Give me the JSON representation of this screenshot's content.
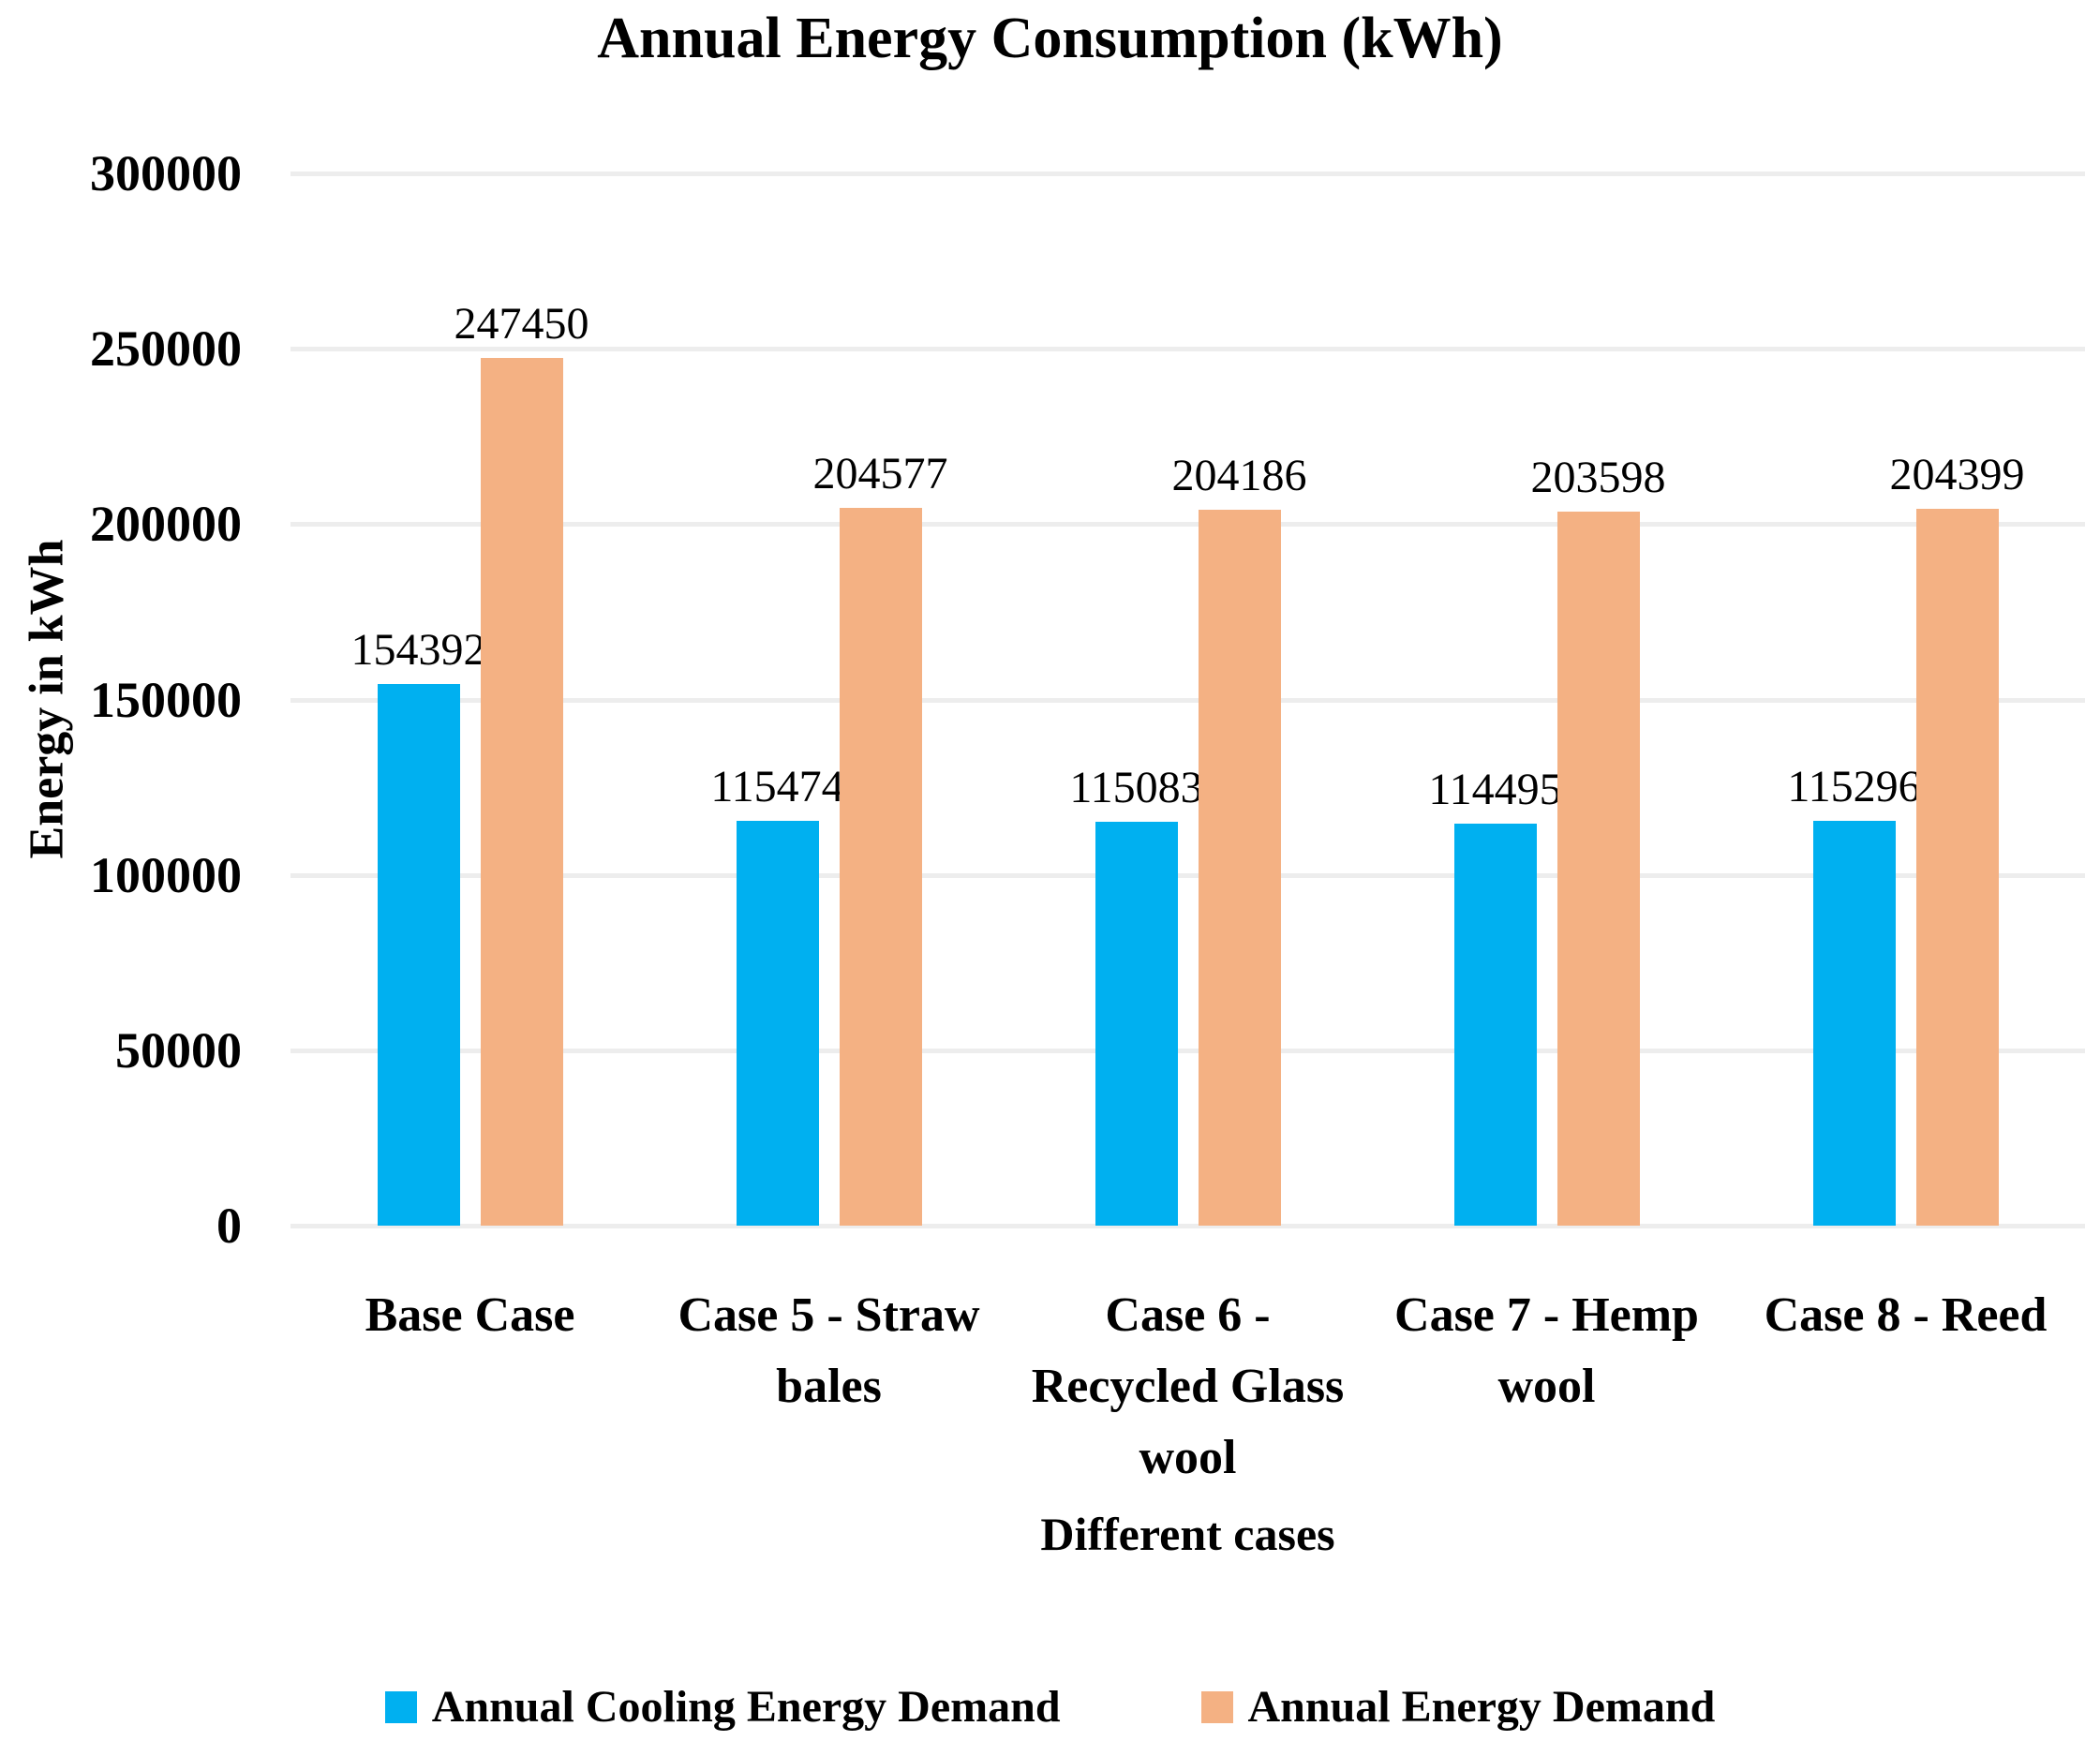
{
  "chart_data": {
    "type": "bar",
    "title": "Annual Energy Consumption (kWh)",
    "xlabel": "Different cases",
    "ylabel": "Energy in kWh",
    "ylim": [
      0,
      300000
    ],
    "yticks": [
      0,
      50000,
      100000,
      150000,
      200000,
      250000,
      300000
    ],
    "ytick_labels": [
      "0",
      "50000",
      "100000",
      "150000",
      "200000",
      "250000",
      "300000"
    ],
    "grid": true,
    "grid_color": "#ededed",
    "legend_position": "bottom",
    "categories": [
      "Base Case",
      "Case 5 - Straw bales",
      "Case 6 - Recycled Glass wool",
      "Case 7 - Hemp wool",
      "Case 8 - Reed"
    ],
    "category_lines": [
      [
        "Base Case"
      ],
      [
        "Case 5 - Straw",
        "bales"
      ],
      [
        "Case 6 -",
        "Recycled Glass",
        "wool"
      ],
      [
        "Case 7 - Hemp",
        "wool"
      ],
      [
        "Case 8 - Reed"
      ]
    ],
    "series": [
      {
        "name": "Annual Cooling Energy Demand",
        "color": "#00b0f0",
        "values": [
          154392,
          115474,
          115083,
          114495,
          115296
        ]
      },
      {
        "name": "Annual Energy Demand",
        "color": "#f4b183",
        "values": [
          247450,
          204577,
          204186,
          203598,
          204399
        ]
      }
    ]
  }
}
